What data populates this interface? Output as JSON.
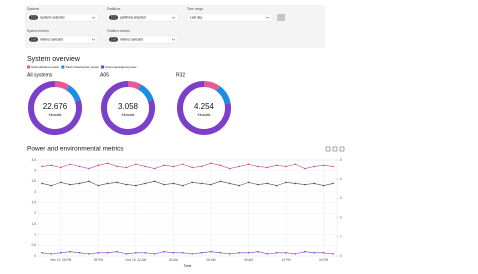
{
  "filters": [
    {
      "label": "Systems",
      "chip": "2 / 2",
      "value": "systems selected"
    },
    {
      "label": "Partitions",
      "chip": "2 / 2",
      "value": "partitions selected"
    },
    {
      "label": "Time range",
      "value": "Last day"
    },
    {
      "label": "System metrics",
      "chip": "2 / 6",
      "value": "metrics selected"
    },
    {
      "label": "Partition metrics",
      "chip": "2 / 6",
      "value": "metrics selected"
    }
  ],
  "overview_title": "System overview",
  "legend": [
    {
      "name": "Total partitions power",
      "color": "#e8579a"
    },
    {
      "name": "Total infrastructure power",
      "color": "#1a8ee0"
    },
    {
      "name": "Total unassigned power",
      "color": "#7b3fc9"
    }
  ],
  "chart_data": [
    {
      "type": "donut",
      "title": "All systems",
      "center_value": "22.676",
      "center_unit": "Kilowatts",
      "values": [
        9,
        11,
        80
      ]
    },
    {
      "type": "donut",
      "title": "A05",
      "center_value": "3.058",
      "center_unit": "Kilowatts",
      "values": [
        8,
        12,
        80
      ]
    },
    {
      "type": "donut",
      "title": "R32",
      "center_value": "4.254",
      "center_unit": "Kilowatts",
      "values": [
        10,
        12,
        78
      ]
    },
    {
      "type": "line",
      "title": "Power and environmental metrics",
      "x_label": "Time",
      "categories": [
        null,
        null,
        "Nov 14, 06 PM",
        null,
        null,
        null,
        "09 PM",
        null,
        null,
        null,
        "Nov 15, 12 AM",
        null,
        null,
        null,
        "03 AM",
        null,
        null,
        null,
        "06 AM",
        null,
        null,
        null,
        "09 AM",
        null,
        null,
        null,
        "12 PM",
        null,
        null,
        null,
        "03 PM",
        null
      ],
      "ylim": [
        0,
        4.5
      ],
      "yticks": [
        0,
        0.5,
        1,
        1.5,
        2,
        2.5,
        3,
        3.5,
        4,
        4.5
      ],
      "y2lim": [
        0,
        5
      ],
      "y2ticks": [
        0,
        1,
        2,
        3,
        4,
        5
      ],
      "grid": true,
      "series": [
        {
          "color": "#c9469a",
          "values": [
            4.2,
            4.25,
            4.15,
            4.3,
            4.2,
            4.1,
            4.25,
            4.35,
            4.2,
            4.15,
            4.3,
            4.2,
            4.1,
            4.25,
            4.2,
            4.3,
            4.15,
            4.2,
            4.35,
            4.25,
            4.1,
            4.2,
            4.3,
            4.2,
            4.15,
            4.25,
            4.2,
            4.3,
            4.1,
            4.2,
            4.25,
            4.2
          ]
        },
        {
          "color": "#4d4d4d",
          "values": [
            3.4,
            3.3,
            3.45,
            3.35,
            3.4,
            3.5,
            3.3,
            3.4,
            3.45,
            3.35,
            3.3,
            3.4,
            3.5,
            3.35,
            3.4,
            3.3,
            3.45,
            3.4,
            3.35,
            3.5,
            3.4,
            3.3,
            3.45,
            3.35,
            3.4,
            3.3,
            3.45,
            3.4,
            3.35,
            3.4,
            3.3,
            3.4
          ]
        },
        {
          "color": "#7b3fc9",
          "values": [
            0.15,
            0.1,
            0.15,
            0.2,
            0.15,
            0.1,
            0.15,
            0.15,
            0.2,
            0.1,
            0.15,
            0.15,
            0.1,
            0.2,
            0.15,
            0.15,
            0.1,
            0.15,
            0.2,
            0.15,
            0.1,
            0.15,
            0.15,
            0.2,
            0.1,
            0.15,
            0.15,
            0.1,
            0.2,
            0.15,
            0.15,
            0.1
          ]
        }
      ]
    }
  ]
}
